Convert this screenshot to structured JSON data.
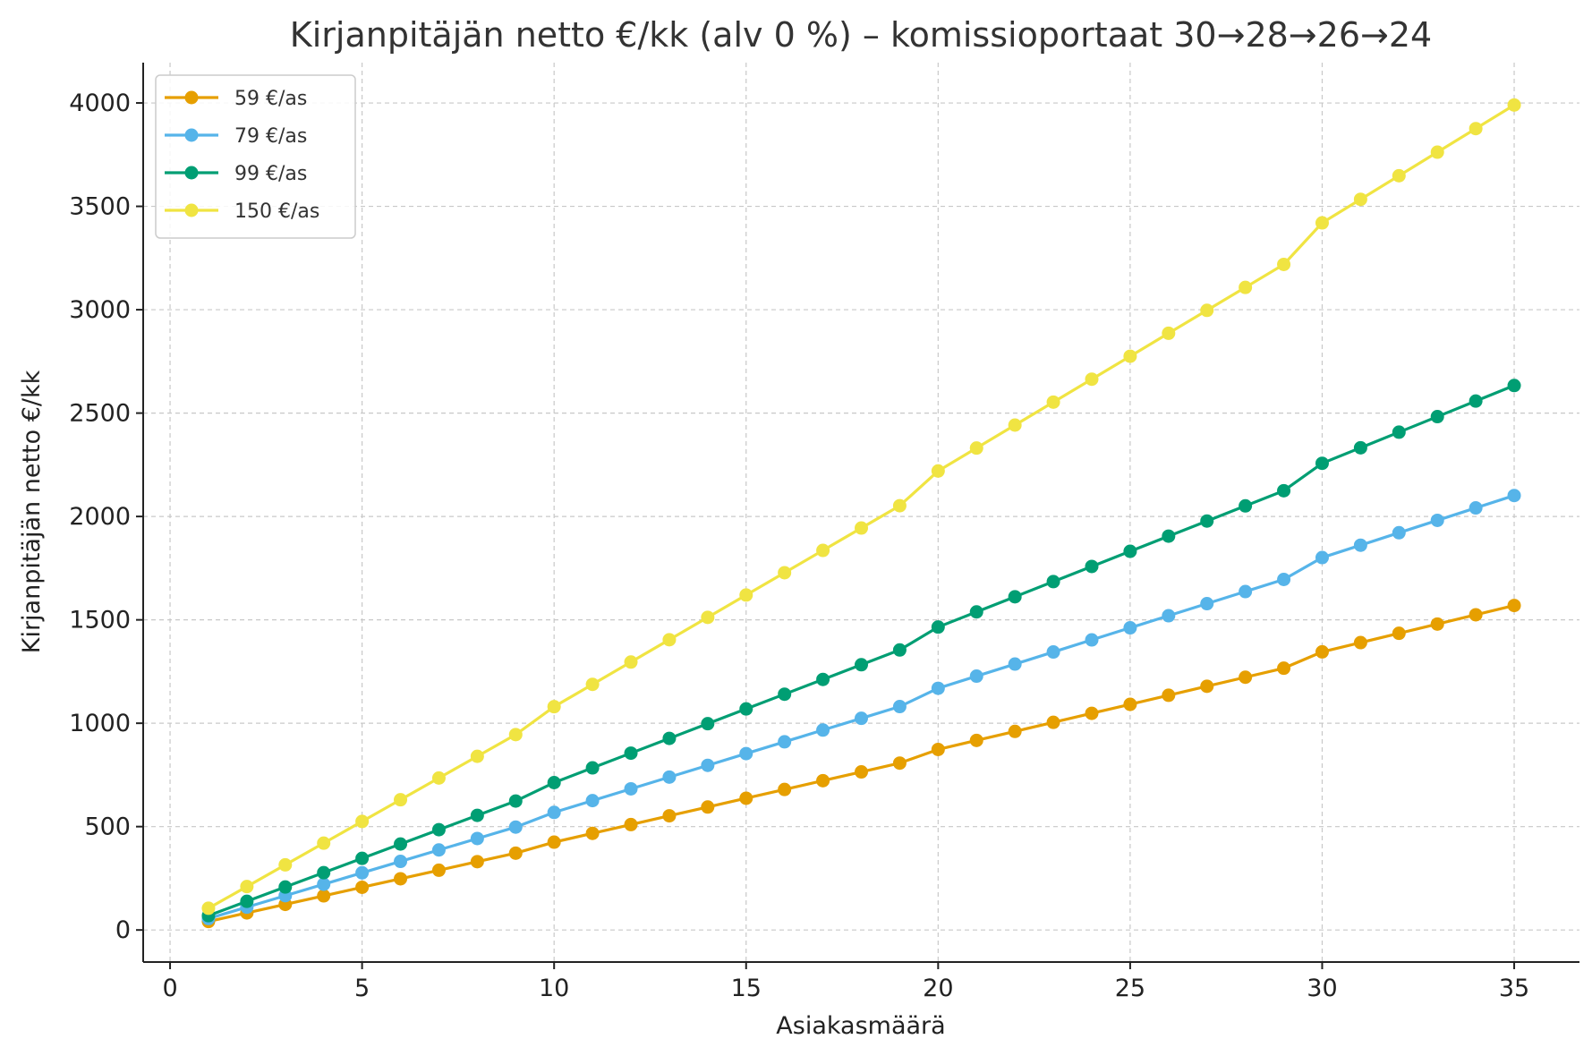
{
  "chart_data": {
    "type": "line",
    "title": "Kirjanpitäjän netto €/kk (alv 0 %) – komissioportaat 30→28→26→24",
    "xlabel": "Asiakasmäärä",
    "ylabel": "Kirjanpitäjän netto €/kk",
    "xlim": [
      -0.7,
      36.7
    ],
    "ylim": [
      -155,
      4195
    ],
    "xticks": [
      0,
      5,
      10,
      15,
      20,
      25,
      30,
      35
    ],
    "yticks": [
      0,
      500,
      1000,
      1500,
      2000,
      2500,
      3000,
      3500,
      4000
    ],
    "grid": true,
    "legend_position": "top-left",
    "x": [
      1,
      2,
      3,
      4,
      5,
      6,
      7,
      8,
      9,
      10,
      11,
      12,
      13,
      14,
      15,
      16,
      17,
      18,
      19,
      20,
      21,
      22,
      23,
      24,
      25,
      26,
      27,
      28,
      29,
      30,
      31,
      32,
      33,
      34,
      35
    ],
    "series": [
      {
        "name": "59 €/as",
        "color": "#E69F00",
        "values": [
          41.3,
          82.6,
          123.9,
          165.2,
          206.5,
          247.8,
          289.1,
          330.4,
          371.7,
          424.8,
          467.3,
          509.8,
          552.2,
          594.7,
          637.2,
          679.7,
          722.2,
          764.6,
          807.1,
          873.2,
          916.9,
          960.5,
          1004.2,
          1047.9,
          1091.5,
          1135.2,
          1178.8,
          1222.5,
          1266.2,
          1345.2,
          1390.0,
          1434.9,
          1479.7,
          1524.6,
          1569.4
        ]
      },
      {
        "name": "79 €/as",
        "color": "#56B4E9",
        "values": [
          55.3,
          110.6,
          165.9,
          221.2,
          276.5,
          331.8,
          387.1,
          442.4,
          497.7,
          568.8,
          625.7,
          682.6,
          739.4,
          796.3,
          853.2,
          910.1,
          967.0,
          1023.8,
          1080.7,
          1169.2,
          1227.7,
          1286.1,
          1344.6,
          1403.1,
          1461.5,
          1520.0,
          1578.4,
          1636.9,
          1695.4,
          1801.2,
          1861.2,
          1921.3,
          1981.3,
          2041.4,
          2101.4
        ]
      },
      {
        "name": "99 €/as",
        "color": "#009E73",
        "values": [
          69.3,
          138.6,
          207.9,
          277.2,
          346.5,
          415.8,
          485.1,
          554.4,
          623.7,
          712.8,
          784.1,
          855.4,
          926.6,
          997.9,
          1069.2,
          1140.5,
          1211.8,
          1283.0,
          1354.3,
          1465.2,
          1538.5,
          1611.7,
          1685.0,
          1758.2,
          1831.5,
          1904.8,
          1978.0,
          2051.3,
          2124.5,
          2257.2,
          2332.4,
          2407.7,
          2482.9,
          2558.2,
          2633.4
        ]
      },
      {
        "name": "150 €/as",
        "color": "#F0E442",
        "values": [
          105.0,
          210.0,
          315.0,
          420.0,
          525.0,
          630.0,
          735.0,
          840.0,
          945.0,
          1080.0,
          1188.0,
          1296.0,
          1404.0,
          1512.0,
          1620.0,
          1728.0,
          1836.0,
          1944.0,
          2052.0,
          2220.0,
          2331.0,
          2442.0,
          2553.0,
          2664.0,
          2775.0,
          2886.0,
          2997.0,
          3108.0,
          3219.0,
          3420.0,
          3534.0,
          3648.0,
          3762.0,
          3876.0,
          3990.0
        ]
      }
    ]
  }
}
